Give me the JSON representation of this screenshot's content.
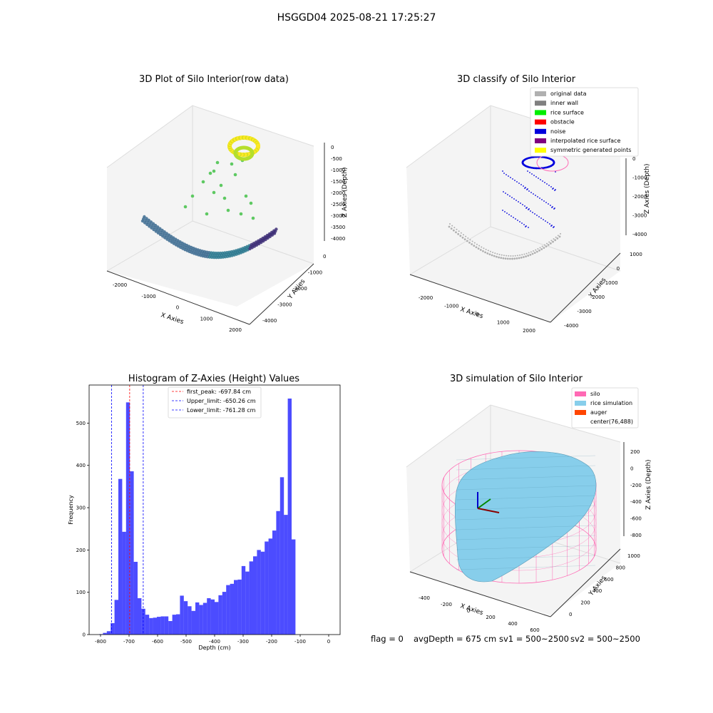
{
  "suptitle": "HSGGD04 2025-08-21 17:25:27",
  "panels": {
    "raw": {
      "title": "3D Plot of Silo Interior(row data)",
      "xlabel": "X Axies",
      "ylabel": "Y Axies",
      "zlabel": "Z Axies (Depth)",
      "xticks": [
        "-2000",
        "-1000",
        "0",
        "1000",
        "2000"
      ],
      "yticks": [
        "0",
        "-1000",
        "-2000",
        "-3000",
        "-4000"
      ],
      "zticks": [
        "0",
        "-500",
        "-1000",
        "-1500",
        "-2000",
        "-2500",
        "-3000",
        "-3500",
        "-4000"
      ]
    },
    "classify": {
      "title": "3D classify of Silo Interior",
      "xlabel": "X Axies",
      "ylabel": "Y Axies",
      "zlabel": "Z Axies (Depth)",
      "xticks": [
        "-2000",
        "-1000",
        "0",
        "1000",
        "2000"
      ],
      "yticks": [
        "1000",
        "0",
        "-1000",
        "-2000",
        "-3000",
        "-4000"
      ],
      "zticks": [
        "0",
        "-1000",
        "-2000",
        "-3000",
        "-4000"
      ],
      "legend": [
        {
          "label": "original data",
          "color": "#b0b0b0"
        },
        {
          "label": "inner wall",
          "color": "#808080"
        },
        {
          "label": "rice surface",
          "color": "#00ee00"
        },
        {
          "label": "obstacle",
          "color": "#ff0000"
        },
        {
          "label": "noise",
          "color": "#0000dd"
        },
        {
          "label": "interpolated rice surface",
          "color": "#800080"
        },
        {
          "label": "symmetric generated points",
          "color": "#ffff00"
        }
      ]
    },
    "simulation": {
      "title": "3D simulation of Silo Interior",
      "xlabel": "X Axies",
      "ylabel": "Y Axies",
      "zlabel": "Z Axies (Depth)",
      "xticks": [
        "-400",
        "-200",
        "0",
        "200",
        "400",
        "600"
      ],
      "yticks": [
        "0",
        "200",
        "400",
        "600",
        "800",
        "1000"
      ],
      "zticks": [
        "200",
        "0",
        "-200",
        "-400",
        "-600",
        "-800"
      ],
      "legend": [
        {
          "label": "silo",
          "color": "#ff69b4"
        },
        {
          "label": "rice simulation",
          "color": "#87ceeb"
        },
        {
          "label": "auger",
          "color": "#ff4500"
        },
        {
          "label": "center(76,488)",
          "color": ""
        }
      ]
    }
  },
  "footer": {
    "flag": "flag = 0",
    "avg": "avgDepth = 675 cm",
    "sv1": "sv1 = 500~2500",
    "sv2": "sv2 = 500~2500"
  },
  "chart_data": {
    "type": "bar",
    "title": "Histogram of Z-Axies (Height) Values",
    "xlabel": "Depth (cm)",
    "ylabel": "Frequency",
    "xlim": [
      -840,
      40
    ],
    "ylim": [
      0,
      590
    ],
    "bin_start": -805,
    "bin_width": 13.5,
    "values": [
      1,
      4,
      8,
      27,
      82,
      368,
      243,
      549,
      386,
      172,
      86,
      61,
      47,
      39,
      40,
      42,
      43,
      43,
      32,
      47,
      48,
      92,
      79,
      67,
      56,
      76,
      70,
      75,
      86,
      83,
      77,
      93,
      101,
      117,
      120,
      129,
      130,
      162,
      149,
      173,
      185,
      200,
      196,
      220,
      227,
      246,
      292,
      372,
      283,
      558,
      225
    ],
    "color": "#0000ff",
    "xticks": [
      -800,
      -700,
      -600,
      -500,
      -400,
      -300,
      -200,
      -100,
      0
    ],
    "yticks": [
      0,
      100,
      200,
      300,
      400,
      500
    ],
    "lines": [
      {
        "label": "first_peak: -697.84 cm",
        "x": -697.84,
        "color": "#ff0000"
      },
      {
        "label": "Upper_limit: -650.26 cm",
        "x": -650.26,
        "color": "#0000ff"
      },
      {
        "label": "Lower_limit: -761.28 cm",
        "x": -761.28,
        "color": "#0000ff"
      }
    ]
  }
}
